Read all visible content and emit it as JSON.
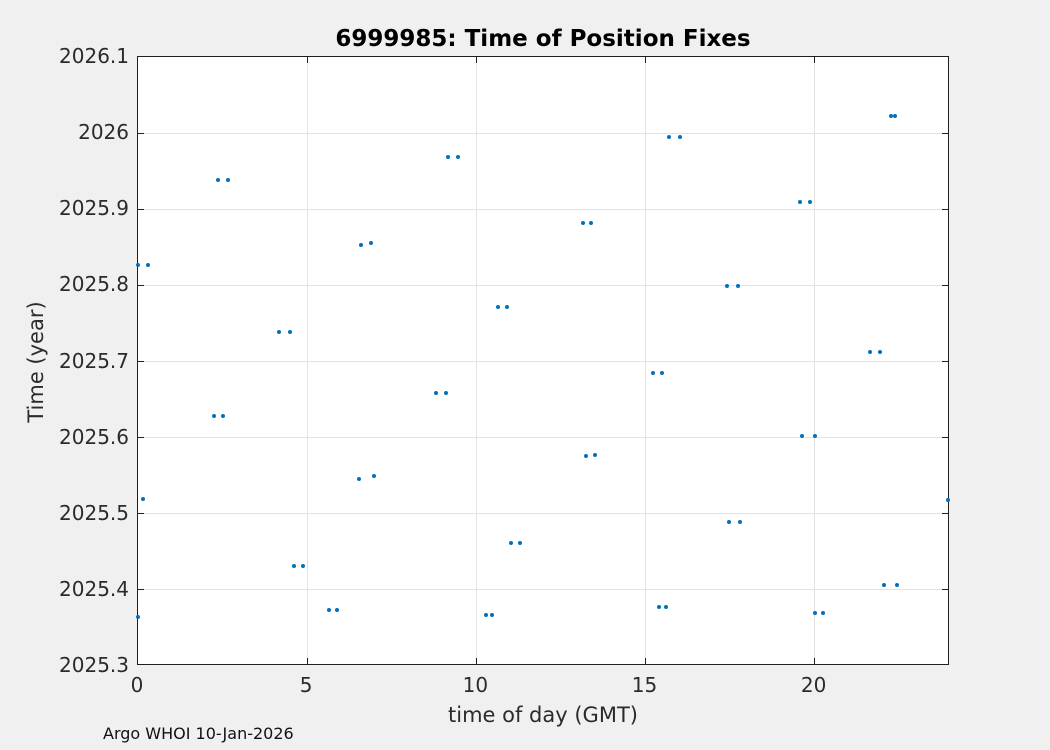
{
  "footer": "Argo WHOI 10-Jan-2026",
  "colors": {
    "figure_background": "#f0f0f0",
    "plot_background": "#ffffff",
    "axis_box": "#1f1f1f",
    "gridline": "#e3e3e3",
    "tick_label": "#2b2b2b",
    "marker": "#0072BD"
  },
  "chart_data": {
    "type": "scatter",
    "title": "6999985: Time of Position Fixes",
    "xlabel": "time of day (GMT)",
    "ylabel": "Time (year)",
    "xlim": [
      0,
      24
    ],
    "ylim": [
      2025.3,
      2026.1
    ],
    "xticks": [
      0,
      5,
      10,
      15,
      20
    ],
    "xtick_labels": [
      "0",
      "5",
      "10",
      "15",
      "20"
    ],
    "yticks": [
      2025.3,
      2025.4,
      2025.5,
      2025.6,
      2025.7,
      2025.8,
      2025.9,
      2026,
      2026.1
    ],
    "ytick_labels": [
      "2025.3",
      "2025.4",
      "2025.5",
      "2025.6",
      "2025.7",
      "2025.8",
      "2025.9",
      "2026",
      "2026.1"
    ],
    "grid": true,
    "legend": null,
    "marker": "dot",
    "marker_color": "#0072BD",
    "points": [
      [
        22.25,
        2026.022
      ],
      [
        22.38,
        2026.022
      ],
      [
        15.68,
        2025.995
      ],
      [
        16.02,
        2025.995
      ],
      [
        9.15,
        2025.969
      ],
      [
        9.46,
        2025.969
      ],
      [
        2.36,
        2025.938
      ],
      [
        2.67,
        2025.938
      ],
      [
        19.57,
        2025.91
      ],
      [
        19.85,
        2025.91
      ],
      [
        13.15,
        2025.882
      ],
      [
        13.4,
        2025.882
      ],
      [
        6.6,
        2025.853
      ],
      [
        6.9,
        2025.856
      ],
      [
        0.01,
        2025.827
      ],
      [
        0.29,
        2025.827
      ],
      [
        17.4,
        2025.799
      ],
      [
        17.73,
        2025.799
      ],
      [
        10.63,
        2025.772
      ],
      [
        10.91,
        2025.772
      ],
      [
        4.18,
        2025.739
      ],
      [
        4.49,
        2025.739
      ],
      [
        21.63,
        2025.712
      ],
      [
        21.94,
        2025.712
      ],
      [
        15.21,
        2025.685
      ],
      [
        15.5,
        2025.685
      ],
      [
        8.81,
        2025.659
      ],
      [
        9.1,
        2025.659
      ],
      [
        2.24,
        2025.628
      ],
      [
        2.51,
        2025.628
      ],
      [
        19.63,
        2025.602
      ],
      [
        20.01,
        2025.602
      ],
      [
        13.24,
        2025.576
      ],
      [
        13.51,
        2025.577
      ],
      [
        6.54,
        2025.546
      ],
      [
        6.97,
        2025.549
      ],
      [
        0.16,
        2025.519
      ],
      [
        23.94,
        2025.518
      ],
      [
        17.47,
        2025.489
      ],
      [
        17.79,
        2025.489
      ],
      [
        11.03,
        2025.462
      ],
      [
        11.28,
        2025.462
      ],
      [
        4.6,
        2025.431
      ],
      [
        4.87,
        2025.431
      ],
      [
        22.06,
        2025.406
      ],
      [
        22.43,
        2025.406
      ],
      [
        15.4,
        2025.378
      ],
      [
        15.62,
        2025.378
      ],
      [
        5.66,
        2025.373
      ],
      [
        5.88,
        2025.373
      ],
      [
        20.02,
        2025.37
      ],
      [
        20.24,
        2025.37
      ],
      [
        10.28,
        2025.367
      ],
      [
        10.46,
        2025.367
      ],
      [
        0.0,
        2025.364
      ]
    ]
  }
}
